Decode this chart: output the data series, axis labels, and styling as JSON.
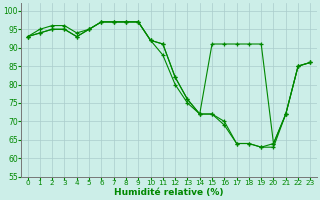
{
  "xlabel": "Humidité relative (%)",
  "background_color": "#cceee8",
  "grid_color": "#aacccc",
  "line_color": "#008800",
  "ylim": [
    55,
    102
  ],
  "xlim": [
    -0.5,
    23.5
  ],
  "yticks": [
    55,
    60,
    65,
    70,
    75,
    80,
    85,
    90,
    95,
    100
  ],
  "xticks": [
    0,
    1,
    2,
    3,
    4,
    5,
    6,
    7,
    8,
    9,
    10,
    11,
    12,
    13,
    14,
    15,
    16,
    17,
    18,
    19,
    20,
    21,
    22,
    23
  ],
  "series": [
    [
      93,
      94,
      95,
      95,
      93,
      95,
      97,
      97,
      97,
      97,
      92,
      91,
      82,
      76,
      72,
      72,
      69,
      64,
      64,
      63,
      64,
      72,
      85,
      86
    ],
    [
      93,
      95,
      96,
      96,
      94,
      95,
      97,
      97,
      97,
      97,
      92,
      91,
      82,
      76,
      72,
      91,
      91,
      91,
      91,
      91,
      64,
      72,
      85,
      86
    ],
    [
      93,
      94,
      95,
      95,
      93,
      95,
      97,
      97,
      97,
      97,
      92,
      88,
      80,
      75,
      72,
      72,
      70,
      64,
      64,
      63,
      63,
      72,
      85,
      86
    ]
  ],
  "figsize": [
    3.2,
    2.0
  ],
  "dpi": 100
}
